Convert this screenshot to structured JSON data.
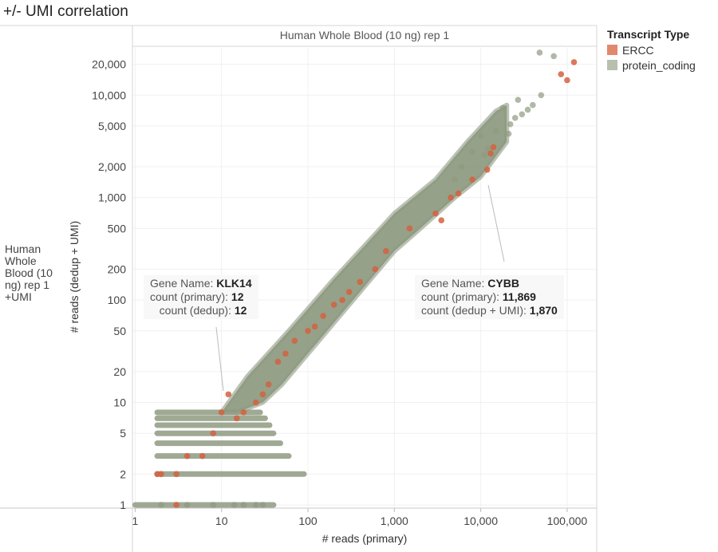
{
  "page_title": "+/- UMI correlation",
  "row_header": "Human Whole Blood (10 ng) rep 1 +UMI",
  "legend": {
    "title": "Transcript Type",
    "items": [
      {
        "label": "ERCC",
        "color": "#e0896e"
      },
      {
        "label": "protein_coding",
        "color": "#b9bfae"
      }
    ]
  },
  "tooltips": [
    {
      "gene_label": "Gene Name:",
      "gene": "KLK14",
      "primary_label": "count (primary):",
      "primary": "12",
      "dedup_label": "count (dedup):",
      "dedup": "12"
    },
    {
      "gene_label": "Gene Name:",
      "gene": "CYBB",
      "primary_label": "count (primary):",
      "primary": "11,869",
      "dedup_label": "count (dedup + UMI):",
      "dedup": "1,870"
    }
  ],
  "chart_data": {
    "type": "scatter",
    "title": "Human Whole Blood (10 ng) rep 1",
    "xlabel": "# reads (primary)",
    "ylabel": "# reads (dedup + UMI)",
    "xscale": "log",
    "yscale": "log",
    "xlim": [
      0.93,
      220000
    ],
    "ylim": [
      0.93,
      30000
    ],
    "x_ticks": [
      1,
      10,
      100,
      1000,
      10000,
      100000
    ],
    "x_tick_labels": [
      "1",
      "10",
      "100",
      "1,000",
      "10,000",
      "100,000"
    ],
    "y_ticks": [
      1,
      2,
      5,
      10,
      20,
      50,
      100,
      200,
      500,
      1000,
      2000,
      5000,
      10000,
      20000
    ],
    "y_tick_labels": [
      "1",
      "2",
      "5",
      "10",
      "20",
      "50",
      "100",
      "200",
      "500",
      "1,000",
      "2,000",
      "5,000",
      "10,000",
      "20,000"
    ],
    "series": [
      {
        "name": "protein_coding",
        "color": "#8e9a80",
        "points": [
          [
            48000,
            26000
          ],
          [
            70000,
            24000
          ],
          [
            27000,
            9000
          ],
          [
            18000,
            7500
          ],
          [
            25000,
            6000
          ],
          [
            50000,
            10000
          ],
          [
            15000,
            4500
          ],
          [
            12000,
            3000
          ],
          [
            10000,
            4000
          ],
          [
            30000,
            6500
          ],
          [
            22000,
            5200
          ],
          [
            8000,
            2800
          ],
          [
            6000,
            2000
          ],
          [
            40000,
            8000
          ],
          [
            35000,
            7200
          ],
          [
            21000,
            4200
          ],
          [
            5000,
            1500
          ],
          [
            11000,
            2600
          ],
          [
            2,
            1
          ],
          [
            4,
            1
          ],
          [
            8,
            1
          ],
          [
            14,
            1
          ],
          [
            18,
            1
          ],
          [
            25,
            1
          ],
          [
            30,
            1
          ]
        ]
      },
      {
        "name": "ERCC",
        "color": "#d4613f",
        "points": [
          [
            120000,
            21000
          ],
          [
            100000,
            14000
          ],
          [
            85000,
            16000
          ],
          [
            14000,
            3100
          ],
          [
            13000,
            2700
          ],
          [
            11869,
            1870
          ],
          [
            8000,
            1500
          ],
          [
            5500,
            1100
          ],
          [
            4500,
            1000
          ],
          [
            3500,
            600
          ],
          [
            3000,
            700
          ],
          [
            1500,
            500
          ],
          [
            800,
            300
          ],
          [
            600,
            200
          ],
          [
            400,
            150
          ],
          [
            300,
            120
          ],
          [
            250,
            100
          ],
          [
            200,
            90
          ],
          [
            150,
            70
          ],
          [
            120,
            55
          ],
          [
            100,
            50
          ],
          [
            70,
            40
          ],
          [
            55,
            30
          ],
          [
            45,
            25
          ],
          [
            35,
            15
          ],
          [
            30,
            12
          ],
          [
            25,
            10
          ],
          [
            18,
            8
          ],
          [
            15,
            7
          ],
          [
            12,
            12
          ],
          [
            10,
            8
          ],
          [
            8,
            5
          ],
          [
            6,
            3
          ],
          [
            4,
            3
          ],
          [
            3,
            2
          ],
          [
            2,
            2
          ],
          [
            1.8,
            2
          ],
          [
            3,
            1
          ]
        ]
      }
    ],
    "band": {
      "series": "protein_coding",
      "color": "#8e9a80",
      "polygon": [
        [
          10,
          8
        ],
        [
          20,
          18
        ],
        [
          60,
          50
        ],
        [
          200,
          160
        ],
        [
          1000,
          700
        ],
        [
          3000,
          1500
        ],
        [
          7000,
          3500
        ],
        [
          15000,
          7000
        ],
        [
          20000,
          8000
        ],
        [
          20000,
          3500
        ],
        [
          10000,
          1600
        ],
        [
          5000,
          1000
        ],
        [
          2000,
          500
        ],
        [
          1000,
          300
        ],
        [
          500,
          150
        ],
        [
          200,
          60
        ],
        [
          100,
          30
        ],
        [
          50,
          15
        ],
        [
          30,
          10
        ],
        [
          15,
          8
        ]
      ]
    },
    "stripes": [
      {
        "y": 8,
        "x_range": [
          1.8,
          28
        ]
      },
      {
        "y": 7,
        "x_range": [
          1.8,
          32
        ]
      },
      {
        "y": 6,
        "x_range": [
          1.8,
          36
        ]
      },
      {
        "y": 5,
        "x_range": [
          1.8,
          40
        ]
      },
      {
        "y": 4,
        "x_range": [
          1.8,
          48
        ]
      },
      {
        "y": 3,
        "x_range": [
          1.8,
          60
        ]
      },
      {
        "y": 2,
        "x_range": [
          1.8,
          90
        ]
      },
      {
        "y": 1,
        "x_range": [
          1,
          40
        ]
      }
    ]
  }
}
